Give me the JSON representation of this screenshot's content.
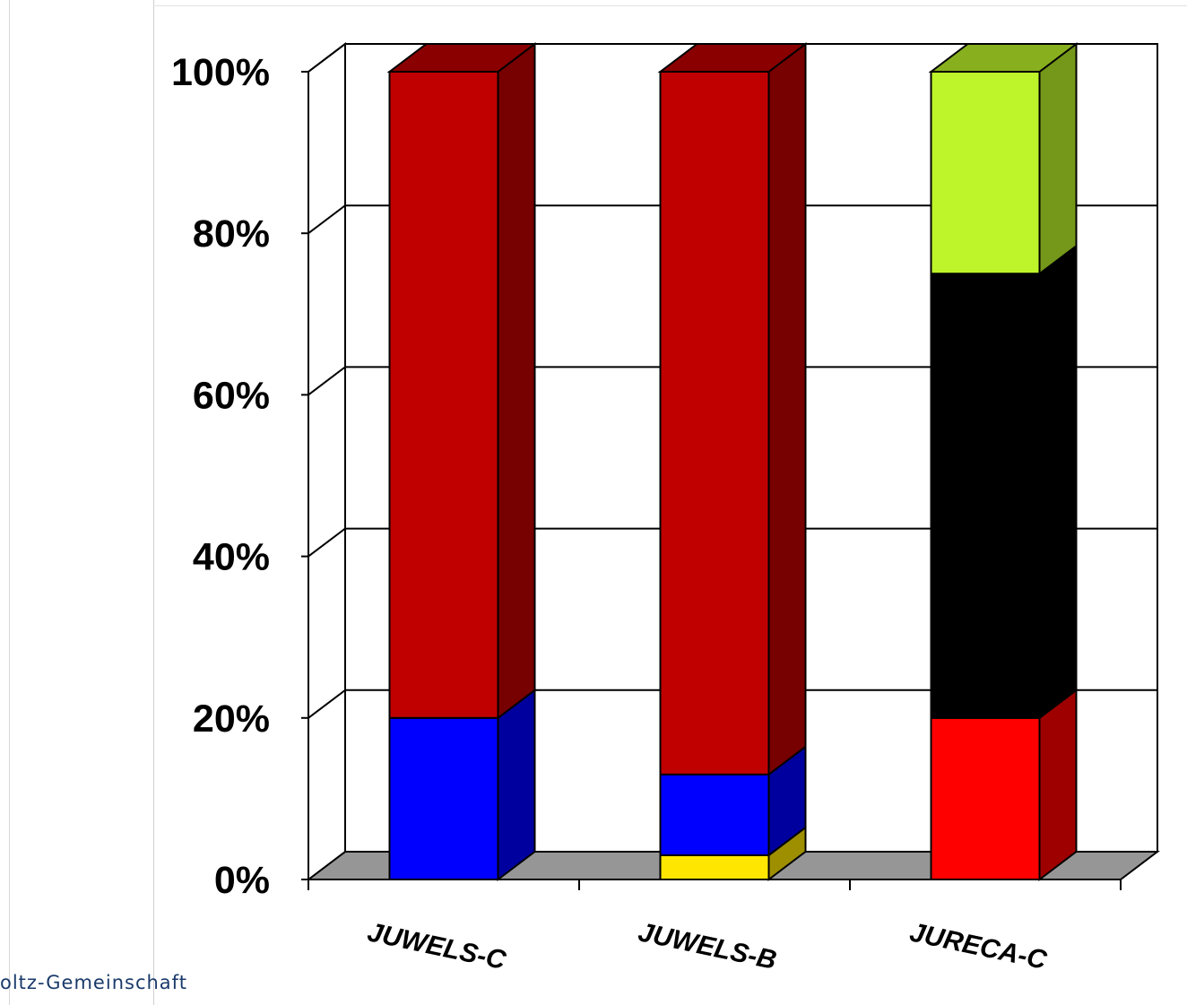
{
  "footer": {
    "organization": "oltz-Gemeinschaft"
  },
  "chart_data": {
    "type": "bar",
    "stacked": true,
    "three_d": true,
    "categories": [
      "JUWELS-C",
      "JUWELS-B",
      "JURECA-C"
    ],
    "y_ticks": [
      "0%",
      "20%",
      "40%",
      "60%",
      "80%",
      "100%"
    ],
    "ylim": [
      0,
      100
    ],
    "grid": true,
    "legend": "none",
    "series": [
      {
        "color": "#ffe600",
        "values": [
          0,
          3,
          0
        ]
      },
      {
        "color": "#0000ff",
        "values": [
          20,
          10,
          0
        ]
      },
      {
        "color": "#ff0000",
        "values": [
          0,
          0,
          20
        ]
      },
      {
        "color": "#000000",
        "values": [
          0,
          0,
          55
        ]
      },
      {
        "color": "#c00000",
        "values": [
          80,
          87,
          0
        ]
      },
      {
        "color": "#bdf52a",
        "values": [
          0,
          0,
          25
        ]
      }
    ],
    "floor_color": "#969696"
  }
}
